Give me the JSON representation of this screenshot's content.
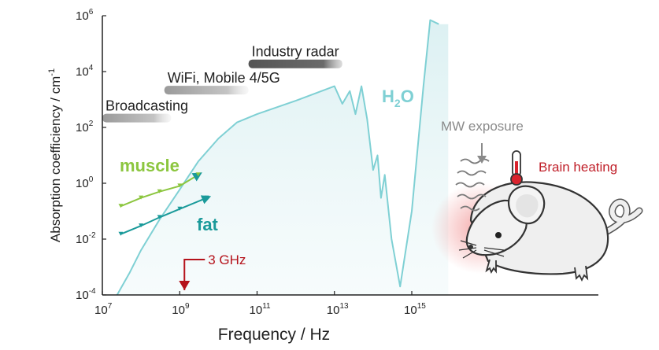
{
  "chart_data": {
    "type": "line",
    "xlabel": "Frequency / Hz",
    "ylabel": "Absorption coefficiency / cm",
    "ylabel_sup": "-1",
    "x_scale": "log",
    "y_scale": "log",
    "xlim": [
      10000000.0,
      1e+17
    ],
    "ylim": [
      0.0001,
      1000000
    ],
    "x_ticks": [
      {
        "value": 10000000.0,
        "base": "10",
        "exp": "7"
      },
      {
        "value": 1000000000.0,
        "base": "10",
        "exp": "9"
      },
      {
        "value": 100000000000.0,
        "base": "10",
        "exp": "11"
      },
      {
        "value": 10000000000000.0,
        "base": "10",
        "exp": "13"
      },
      {
        "value": 1000000000000000.0,
        "base": "10",
        "exp": "15"
      }
    ],
    "y_ticks": [
      {
        "value": 0.0001,
        "base": "10",
        "exp": "-4"
      },
      {
        "value": 0.01,
        "base": "10",
        "exp": "-2"
      },
      {
        "value": 1,
        "base": "10",
        "exp": "0"
      },
      {
        "value": 100,
        "base": "10",
        "exp": "2"
      },
      {
        "value": 10000,
        "base": "10",
        "exp": "4"
      },
      {
        "value": 1000000,
        "base": "10",
        "exp": "6"
      }
    ],
    "series": [
      {
        "name": "H₂O",
        "label_main": "H",
        "label_sub": "2",
        "label_tail": "O",
        "color": "#7fd0d4",
        "x": [
          24000000.0,
          50000000.0,
          100000000.0,
          300000000.0,
          1000000000.0,
          3000000000.0,
          10000000000.0,
          30000000000.0,
          100000000000.0,
          1000000000000.0,
          10000000000000.0,
          16000000000000.0,
          25000000000000.0,
          35000000000000.0,
          50000000000000.0,
          70000000000000.0,
          100000000000000.0,
          130000000000000.0,
          160000000000000.0,
          200000000000000.0,
          300000000000000.0,
          500000000000000.0,
          1000000000000000.0,
          2000000000000000.0,
          3000000000000000.0,
          5000000000000000.0
        ],
        "y": [
          0.0001,
          0.0006,
          0.004,
          0.05,
          0.6,
          6,
          40,
          150,
          300,
          900,
          3000,
          700,
          2000,
          300,
          3000,
          200,
          3,
          10,
          0.3,
          2,
          0.01,
          0.0002,
          0.1,
          3000,
          700000,
          500000
        ]
      },
      {
        "name": "muscle",
        "color": "#8cc63f",
        "x": [
          30000000.0,
          100000000.0,
          300000000.0,
          1000000000.0,
          3000000000.0
        ],
        "y": [
          0.15,
          0.3,
          0.5,
          0.8,
          2
        ]
      },
      {
        "name": "fat",
        "color": "#1a9a9a",
        "x": [
          30000000.0,
          100000000.0,
          300000000.0,
          1000000000.0,
          5000000000.0
        ],
        "y": [
          0.015,
          0.03,
          0.06,
          0.12,
          0.3
        ]
      }
    ],
    "bands": [
      {
        "label": "Broadcasting",
        "x_start": 10000000.0,
        "x_end": 600000000.0,
        "y": 400
      },
      {
        "label": "WiFi, Mobile 4/5G",
        "x_start": 400000000.0,
        "x_end": 60000000000.0,
        "y": 4000
      },
      {
        "label": "Industry radar",
        "x_start": 60000000000.0,
        "x_end": 16000000000000.0,
        "y": 35000
      }
    ],
    "annotations": [
      {
        "label": "3 GHz",
        "x": 1000000000.0,
        "y": 0.0001
      }
    ],
    "grid": false,
    "legend": "none"
  },
  "illustration": {
    "exposure_label": "MW exposure",
    "heating_label": "Brain heating"
  },
  "colors": {
    "water": "#7fd0d4",
    "muscle": "#8cc63f",
    "fat": "#1a9a9a",
    "marker_red": "#b5121b",
    "axis": "#222222"
  }
}
